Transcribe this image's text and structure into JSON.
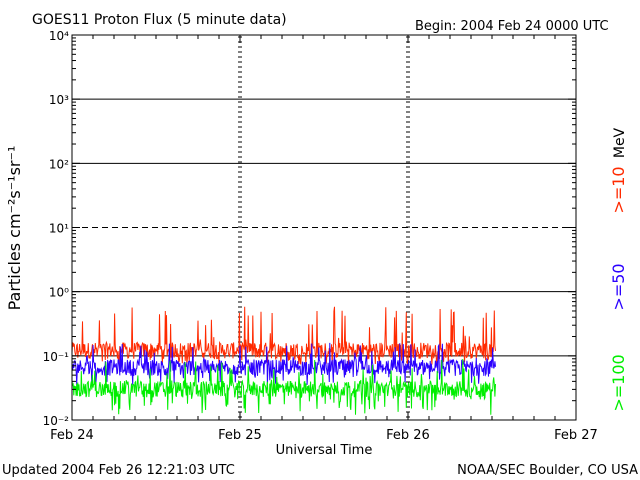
{
  "chart_data": {
    "type": "line",
    "title": "GOES11 Proton Flux (5 minute data)",
    "begin_label": "Begin: 2004 Feb 24 0000 UTC",
    "ylabel": "Particles cm⁻²s⁻¹sr⁻¹",
    "xlabel": "Universal Time",
    "y_scale": "log",
    "ylim": [
      0.01,
      10000
    ],
    "xlim": [
      0,
      3
    ],
    "x_unit": "days since 2004 Feb 24 0000 UTC",
    "grid": true,
    "dashed_level": 10,
    "x_ticks": [
      "Feb 24",
      "Feb 25",
      "Feb 26",
      "Feb 27"
    ],
    "y_ticks": [
      "10⁻²",
      "10⁻¹",
      "10⁰",
      "10¹",
      "10²",
      "10³",
      "10⁴"
    ],
    "legend_units": "MeV",
    "series": [
      {
        "name": ">=10",
        "color": "#ff2a00",
        "baseline": 0.12,
        "spike_max": 0.6,
        "floor": 0.07
      },
      {
        "name": ">=50",
        "color": "#2a00ff",
        "baseline": 0.065,
        "spike_max": 0.16,
        "floor": 0.035
      },
      {
        "name": ">=100",
        "color": "#00ee00",
        "baseline": 0.03,
        "spike_max": 0.09,
        "floor": 0.012
      }
    ],
    "data_end_day": 2.52
  },
  "footer": {
    "updated": "Updated 2004 Feb 26 12:21:03 UTC",
    "source": "NOAA/SEC Boulder, CO USA"
  }
}
